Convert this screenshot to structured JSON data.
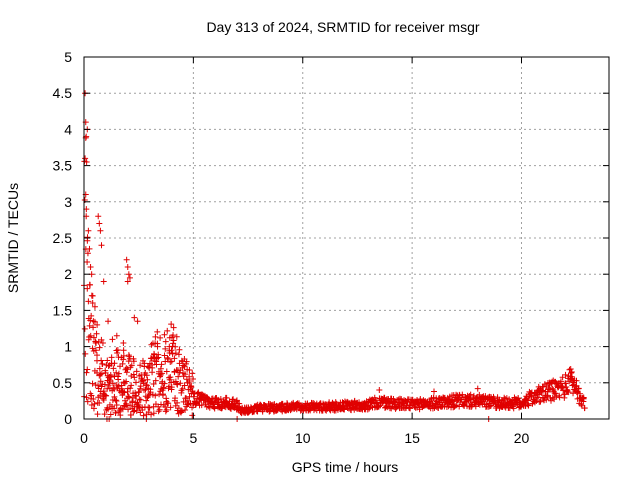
{
  "chart_data": {
    "type": "scatter",
    "title": "Day 313 of 2024, SRMTID for receiver msgr",
    "xlabel": "GPS time / hours",
    "ylabel": "SRMTID / TECUs",
    "xlim": [
      0,
      24
    ],
    "ylim": [
      0,
      5
    ],
    "xticks": [
      0,
      5,
      10,
      15,
      20
    ],
    "yticks": [
      0,
      0.5,
      1,
      1.5,
      2,
      2.5,
      3,
      3.5,
      4,
      4.5,
      5
    ],
    "xtick_labels": [
      "0",
      "5",
      "10",
      "15",
      "20"
    ],
    "ytick_labels": [
      "0",
      "0.5",
      "1",
      "1.5",
      "2",
      "2.5",
      "3",
      "3.5",
      "4",
      "4.5",
      "5"
    ],
    "grid": true,
    "marker": "+",
    "series_color": "#e00000",
    "series": [
      {
        "name": "SRMTID",
        "profile_x": [
          0,
          0.05,
          0.1,
          0.2,
          0.3,
          0.5,
          0.8,
          1.0,
          1.3,
          1.6,
          1.9,
          2.2,
          2.6,
          3.0,
          3.3,
          3.6,
          4.0,
          4.4,
          4.7,
          5.0,
          5.5,
          6.0,
          6.5,
          7.0,
          7.2,
          7.5,
          8.0,
          9.0,
          10.0,
          11.0,
          12.0,
          13.0,
          13.5,
          14.0,
          15.0,
          16.0,
          17.0,
          18.0,
          19.0,
          20.0,
          20.5,
          21.0,
          21.5,
          22.0,
          22.3,
          22.6,
          22.9
        ],
        "profile_y": [
          3.0,
          2.4,
          1.9,
          1.4,
          1.0,
          0.7,
          0.6,
          0.5,
          0.45,
          0.55,
          0.5,
          0.45,
          0.4,
          0.55,
          0.65,
          0.6,
          0.75,
          0.5,
          0.45,
          0.3,
          0.25,
          0.22,
          0.22,
          0.2,
          0.12,
          0.13,
          0.15,
          0.16,
          0.17,
          0.17,
          0.18,
          0.2,
          0.23,
          0.22,
          0.2,
          0.22,
          0.25,
          0.25,
          0.22,
          0.22,
          0.3,
          0.35,
          0.4,
          0.45,
          0.55,
          0.35,
          0.2
        ],
        "spikes": [
          [
            0.05,
            4.5
          ],
          [
            0.08,
            4.1
          ],
          [
            0.15,
            4.0
          ],
          [
            0.1,
            3.9
          ],
          [
            0.05,
            3.6
          ],
          [
            0.12,
            3.55
          ],
          [
            0.08,
            3.1
          ],
          [
            0.1,
            2.8
          ],
          [
            0.2,
            2.6
          ],
          [
            0.25,
            2.35
          ],
          [
            0.3,
            2.1
          ],
          [
            0.35,
            2.0
          ],
          [
            0.15,
            1.8
          ],
          [
            0.4,
            1.7
          ],
          [
            0.5,
            1.55
          ],
          [
            0.7,
            2.7
          ],
          [
            0.75,
            2.6
          ],
          [
            0.8,
            2.4
          ],
          [
            0.65,
            2.8
          ],
          [
            0.9,
            1.9
          ],
          [
            0.6,
            1.3
          ],
          [
            1.1,
            1.35
          ],
          [
            1.3,
            1.1
          ],
          [
            1.5,
            1.15
          ],
          [
            1.8,
            1.05
          ],
          [
            1.95,
            2.2
          ],
          [
            2.0,
            2.1
          ],
          [
            2.05,
            2.0
          ],
          [
            2.1,
            1.95
          ],
          [
            2.0,
            1.9
          ],
          [
            2.3,
            1.4
          ],
          [
            2.45,
            1.35
          ],
          [
            3.2,
            0.9
          ],
          [
            3.4,
            0.85
          ],
          [
            3.9,
            1.0
          ],
          [
            4.0,
            0.95
          ],
          [
            4.05,
            0.9
          ],
          [
            13.5,
            0.4
          ],
          [
            16.0,
            0.38
          ],
          [
            18.0,
            0.42
          ],
          [
            22.3,
            0.65
          ]
        ],
        "zero_points": [
          [
            1.05,
            0.0
          ],
          [
            1.15,
            0.0
          ],
          [
            2.85,
            0.0
          ],
          [
            7.0,
            0.0
          ],
          [
            18.5,
            0.0
          ]
        ]
      }
    ]
  }
}
